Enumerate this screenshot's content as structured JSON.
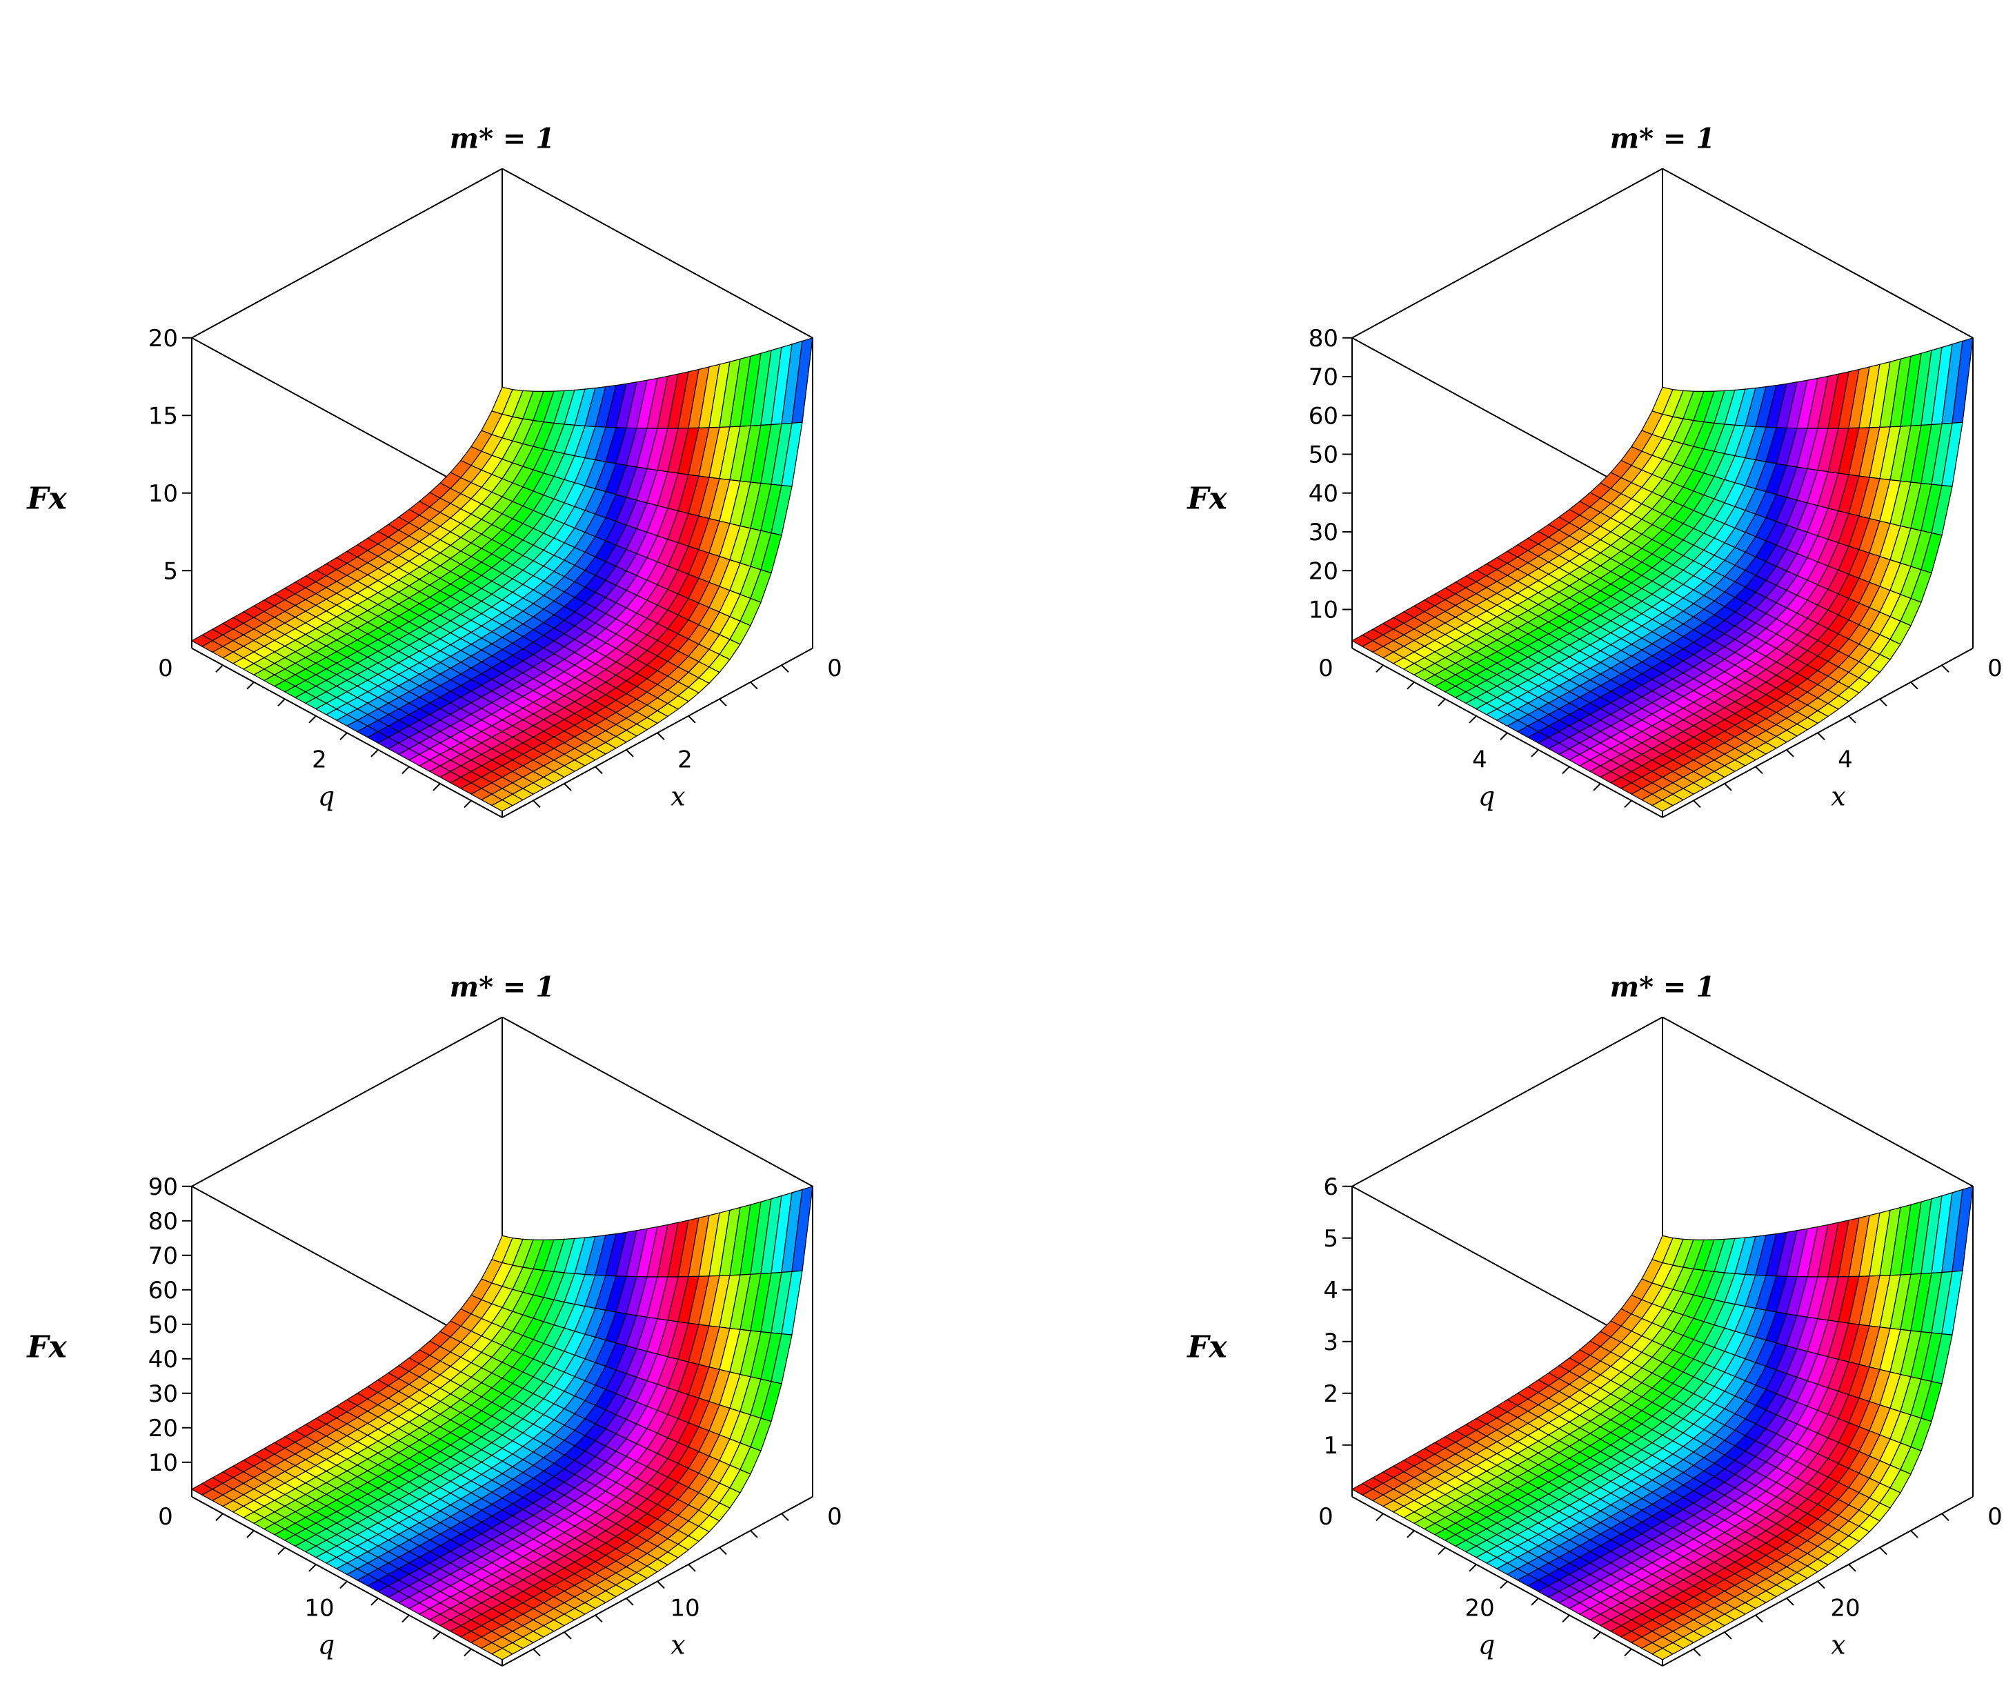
{
  "chart_data": [
    {
      "type": "surface",
      "title": "m* = 1",
      "zlabel": "Fx",
      "xlabel": "x",
      "ylabel": "q",
      "z_ticks": [
        5,
        10,
        15,
        20
      ],
      "zlim": [
        0,
        20
      ],
      "z_origin_label": "0",
      "q_tick": "2",
      "x_tick": "2",
      "x_origin_label": "0",
      "axis_max": 4
    },
    {
      "type": "surface",
      "title": "m* = 1",
      "zlabel": "Fx",
      "xlabel": "x",
      "ylabel": "q",
      "z_ticks": [
        10,
        20,
        30,
        40,
        50,
        60,
        70,
        80
      ],
      "zlim": [
        0,
        80
      ],
      "z_origin_label": "0",
      "q_tick": "4",
      "x_tick": "4",
      "x_origin_label": "0",
      "axis_max": 8
    },
    {
      "type": "surface",
      "title": "m* = 1",
      "zlabel": "Fx",
      "xlabel": "x",
      "ylabel": "q",
      "z_ticks": [
        10,
        20,
        30,
        40,
        50,
        60,
        70,
        80,
        90
      ],
      "zlim": [
        0,
        90
      ],
      "z_origin_label": "0",
      "q_tick": "10",
      "x_tick": "10",
      "x_origin_label": "0",
      "axis_max": 20
    },
    {
      "type": "surface",
      "title": "m* = 1",
      "zlabel": "Fx",
      "xlabel": "x",
      "ylabel": "q",
      "z_ticks": [
        1,
        2,
        3,
        4,
        5,
        6
      ],
      "zlim": [
        0,
        6
      ],
      "z_origin_label": "0",
      "q_tick": "20",
      "x_tick": "20",
      "x_origin_label": "0",
      "axis_max": 40
    }
  ]
}
